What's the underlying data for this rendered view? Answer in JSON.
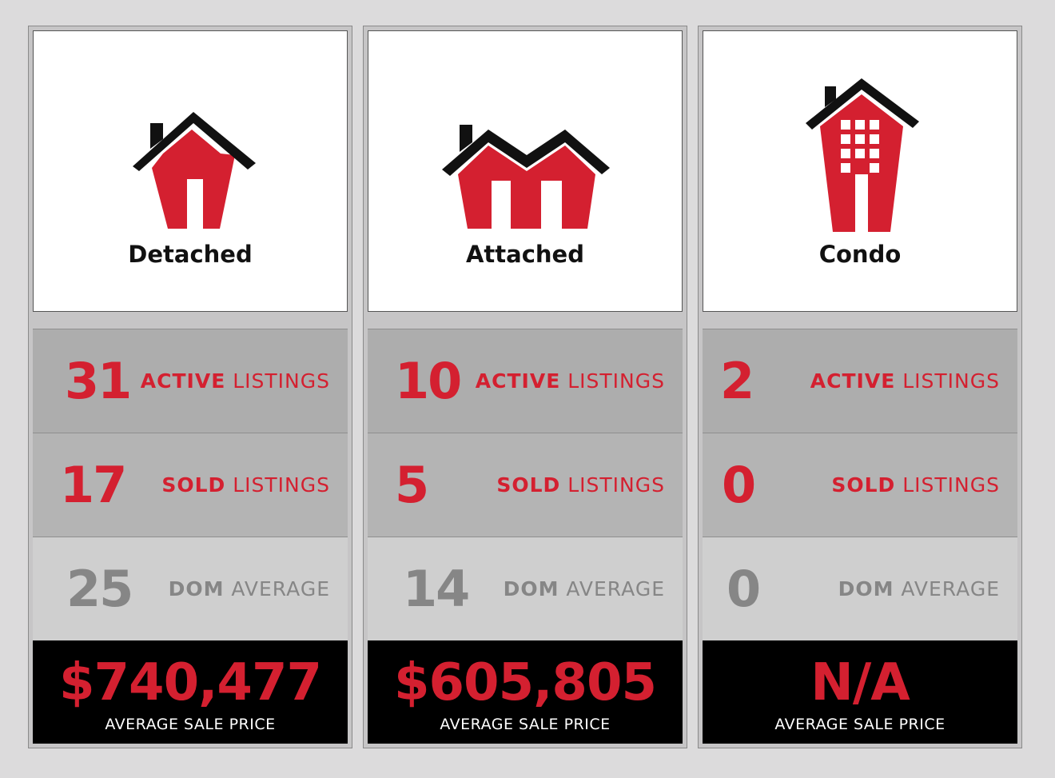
{
  "colors": {
    "accent": "#d42030",
    "gray_text": "#868686",
    "price_bg": "#000000"
  },
  "cards": [
    {
      "icon": "detached-house-icon",
      "type": "Detached",
      "active": {
        "value": "31",
        "strong": "ACTIVE",
        "rest": "LISTINGS"
      },
      "sold": {
        "value": "17",
        "strong": "SOLD",
        "rest": "LISTINGS"
      },
      "dom": {
        "value": "25",
        "strong": "DOM",
        "rest": "AVERAGE"
      },
      "price": {
        "value": "$740,477",
        "caption": "AVERAGE SALE PRICE"
      }
    },
    {
      "icon": "attached-house-icon",
      "type": "Attached",
      "active": {
        "value": "10",
        "strong": "ACTIVE",
        "rest": "LISTINGS"
      },
      "sold": {
        "value": "5",
        "strong": "SOLD",
        "rest": "LISTINGS"
      },
      "dom": {
        "value": "14",
        "strong": "DOM",
        "rest": "AVERAGE"
      },
      "price": {
        "value": "$605,805",
        "caption": "AVERAGE SALE PRICE"
      }
    },
    {
      "icon": "condo-building-icon",
      "type": "Condo",
      "active": {
        "value": "2",
        "strong": "ACTIVE",
        "rest": "LISTINGS"
      },
      "sold": {
        "value": "0",
        "strong": "SOLD",
        "rest": "LISTINGS"
      },
      "dom": {
        "value": "0",
        "strong": "DOM",
        "rest": "AVERAGE"
      },
      "price": {
        "value": "N/A",
        "caption": "AVERAGE SALE PRICE"
      }
    }
  ]
}
